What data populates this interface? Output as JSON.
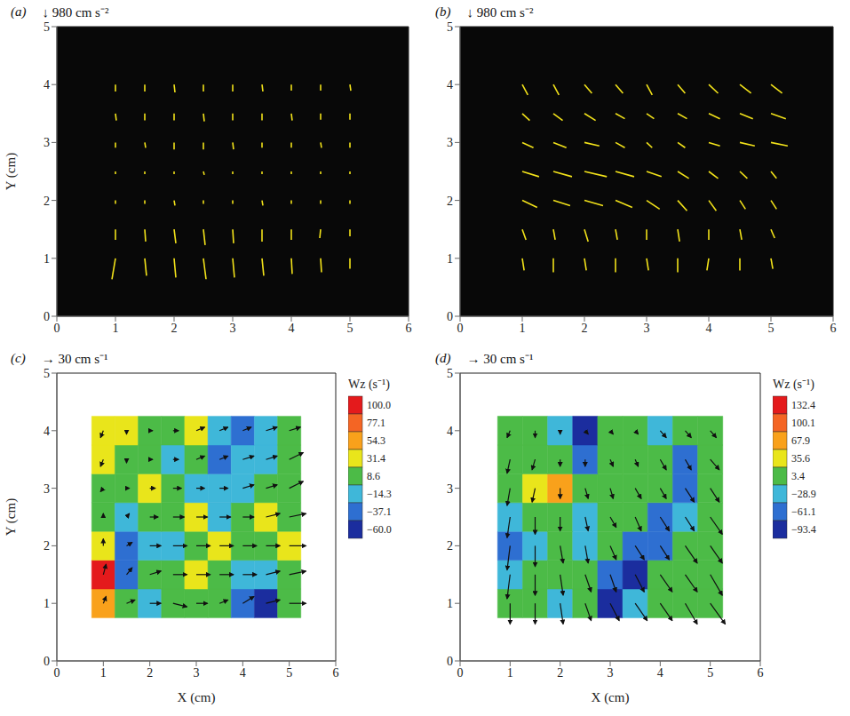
{
  "chart_data": [
    {
      "type": "vector",
      "title": "(a)",
      "annotation": "↓ 980 cm s⁻²",
      "ylabel": "Y (cm)",
      "color": "#f2e21a",
      "xlim": [
        0,
        6
      ],
      "ylim": [
        0,
        5
      ],
      "xticks": [
        0,
        1,
        2,
        3,
        4,
        5,
        6
      ],
      "yticks": [
        0,
        1,
        2,
        3,
        4,
        5
      ],
      "x": [
        1,
        1.5,
        2,
        2.5,
        3,
        3.5,
        4,
        4.5,
        5
      ],
      "y": [
        1,
        1.5,
        2,
        2.5,
        3,
        3.5,
        4
      ],
      "u": [
        [
          -200,
          100,
          100,
          150,
          100,
          100,
          50,
          50,
          0
        ],
        [
          0,
          50,
          100,
          100,
          50,
          0,
          0,
          -50,
          0
        ],
        [
          0,
          0,
          50,
          0,
          0,
          50,
          0,
          0,
          0
        ],
        [
          0,
          0,
          0,
          50,
          0,
          0,
          0,
          0,
          0
        ],
        [
          0,
          50,
          0,
          0,
          50,
          0,
          0,
          50,
          0
        ],
        [
          50,
          0,
          0,
          50,
          0,
          0,
          50,
          0,
          0
        ],
        [
          0,
          0,
          50,
          0,
          0,
          50,
          0,
          0,
          50
        ]
      ],
      "v": [
        [
          -1200,
          -1000,
          -1100,
          -1200,
          -1100,
          -1000,
          -900,
          -800,
          -600
        ],
        [
          -600,
          -700,
          -800,
          -900,
          -800,
          -700,
          -600,
          -500,
          -400
        ],
        [
          -200,
          -200,
          -300,
          -200,
          -200,
          -300,
          -200,
          -200,
          -200
        ],
        [
          -150,
          -150,
          -150,
          -200,
          -150,
          -150,
          -150,
          -150,
          -150
        ],
        [
          -300,
          -300,
          -400,
          -400,
          -400,
          -300,
          -300,
          -300,
          -300
        ],
        [
          -400,
          -400,
          -400,
          -450,
          -400,
          -400,
          -400,
          -350,
          -350
        ],
        [
          -400,
          -400,
          -450,
          -400,
          -400,
          -400,
          -350,
          -350,
          -350
        ]
      ]
    },
    {
      "type": "vector",
      "title": "(b)",
      "annotation": "↓ 980 cm s⁻²",
      "color": "#f2e21a",
      "xlim": [
        0,
        6
      ],
      "ylim": [
        0,
        5
      ],
      "xticks": [
        0,
        1,
        2,
        3,
        4,
        5,
        6
      ],
      "yticks": [
        0,
        1,
        2,
        3,
        4,
        5
      ],
      "x": [
        1,
        1.5,
        2,
        2.5,
        3,
        3.5,
        4,
        4.5,
        5
      ],
      "y": [
        1,
        1.5,
        2,
        2.5,
        3,
        3.5,
        4
      ],
      "u": [
        [
          100,
          0,
          100,
          0,
          100,
          0,
          -100,
          0,
          100
        ],
        [
          200,
          100,
          200,
          100,
          0,
          100,
          0,
          100,
          200
        ],
        [
          800,
          900,
          1000,
          900,
          700,
          500,
          400,
          300,
          300
        ],
        [
          900,
          1000,
          1200,
          1000,
          800,
          600,
          500,
          400,
          300
        ],
        [
          600,
          700,
          800,
          500,
          300,
          400,
          600,
          800,
          900
        ],
        [
          400,
          500,
          600,
          500,
          400,
          500,
          600,
          700,
          800
        ],
        [
          300,
          300,
          400,
          400,
          300,
          400,
          500,
          600,
          600
        ]
      ],
      "v": [
        [
          -700,
          -800,
          -700,
          -800,
          -700,
          -800,
          -700,
          -700,
          -600
        ],
        [
          -600,
          -600,
          -700,
          -600,
          -600,
          -700,
          -600,
          -600,
          -500
        ],
        [
          -400,
          -300,
          -300,
          -400,
          -500,
          -600,
          -600,
          -500,
          -500
        ],
        [
          -300,
          -300,
          -300,
          -300,
          -300,
          -400,
          -400,
          -400,
          -400
        ],
        [
          -300,
          -300,
          -200,
          -300,
          -300,
          -300,
          -200,
          -200,
          -200
        ],
        [
          -400,
          -400,
          -400,
          -300,
          -300,
          -300,
          -300,
          -300,
          -300
        ],
        [
          -600,
          -600,
          -500,
          -500,
          -600,
          -500,
          -500,
          -500,
          -500
        ]
      ]
    },
    {
      "type": "vector_heatmap",
      "title": "(c)",
      "annotation": "→ 30 cm s⁻¹",
      "xlabel": "X (cm)",
      "ylabel": "Y (cm)",
      "color": "#111111",
      "xlim": [
        0,
        6
      ],
      "ylim": [
        0,
        5
      ],
      "xticks": [
        0,
        1,
        2,
        3,
        4,
        5,
        6
      ],
      "yticks": [
        0,
        1,
        2,
        3,
        4,
        5
      ],
      "x": [
        1,
        1.5,
        2,
        2.5,
        3,
        3.5,
        4,
        4.5,
        5
      ],
      "y": [
        1,
        1.5,
        2,
        2.5,
        3,
        3.5,
        4
      ],
      "u": [
        [
          5,
          15,
          20,
          25,
          20,
          15,
          20,
          25,
          30
        ],
        [
          5,
          10,
          20,
          25,
          25,
          25,
          25,
          25,
          30
        ],
        [
          0,
          10,
          20,
          25,
          25,
          25,
          25,
          25,
          30
        ],
        [
          0,
          5,
          15,
          20,
          20,
          20,
          20,
          25,
          30
        ],
        [
          -5,
          5,
          10,
          15,
          15,
          15,
          20,
          20,
          25
        ],
        [
          -5,
          0,
          5,
          10,
          15,
          15,
          20,
          20,
          25
        ],
        [
          -5,
          0,
          5,
          10,
          15,
          15,
          15,
          20,
          20
        ]
      ],
      "v": [
        [
          10,
          5,
          0,
          -5,
          0,
          5,
          10,
          5,
          0
        ],
        [
          15,
          10,
          5,
          0,
          0,
          0,
          0,
          5,
          5
        ],
        [
          10,
          5,
          0,
          0,
          0,
          0,
          0,
          0,
          0
        ],
        [
          5,
          5,
          0,
          0,
          0,
          0,
          0,
          5,
          5
        ],
        [
          -5,
          0,
          0,
          0,
          0,
          0,
          5,
          5,
          10
        ],
        [
          -10,
          -5,
          0,
          0,
          5,
          5,
          5,
          5,
          10
        ],
        [
          -10,
          -5,
          0,
          0,
          5,
          5,
          5,
          5,
          5
        ]
      ],
      "vorticity": [
        [
          60,
          10,
          -20,
          10,
          10,
          15,
          -40,
          -50,
          10
        ],
        [
          90,
          -30,
          10,
          15,
          20,
          10,
          -10,
          -20,
          15
        ],
        [
          20,
          -40,
          -20,
          -10,
          15,
          20,
          10,
          15,
          20
        ],
        [
          15,
          -10,
          10,
          15,
          20,
          -15,
          10,
          20,
          15
        ],
        [
          10,
          15,
          20,
          10,
          -20,
          -20,
          -10,
          15,
          10
        ],
        [
          20,
          15,
          10,
          -10,
          15,
          -30,
          -25,
          -10,
          10
        ],
        [
          30,
          20,
          15,
          10,
          20,
          -20,
          -40,
          -20,
          15
        ]
      ],
      "colorbar": {
        "title": "Wz (s⁻¹)",
        "range": [
          -60,
          100
        ],
        "ticks": [
          {
            "value": 100,
            "label": "100.0"
          },
          {
            "value": 77.1,
            "label": "77.1"
          },
          {
            "value": 54.3,
            "label": "54.3"
          },
          {
            "value": 31.4,
            "label": "31.4"
          },
          {
            "value": 8.6,
            "label": "8.6"
          },
          {
            "value": -14.3,
            "label": "−14.3"
          },
          {
            "value": -37.1,
            "label": "−37.1"
          },
          {
            "value": -60,
            "label": "−60.0"
          }
        ],
        "colors": [
          "#e41a1c",
          "#f46524",
          "#f9a11b",
          "#e9e51b",
          "#4cbb47",
          "#3fb7d9",
          "#2e6fd1",
          "#1b2d9e"
        ]
      }
    },
    {
      "type": "vector_heatmap",
      "title": "(d)",
      "annotation": "→ 30 cm s⁻¹",
      "xlabel": "X (cm)",
      "color": "#111111",
      "xlim": [
        0,
        6
      ],
      "ylim": [
        0,
        5
      ],
      "xticks": [
        0,
        1,
        2,
        3,
        4,
        5,
        6
      ],
      "yticks": [
        0,
        1,
        2,
        3,
        4,
        5
      ],
      "x": [
        1,
        1.5,
        2,
        2.5,
        3,
        3.5,
        4,
        4.5,
        5
      ],
      "y": [
        1,
        1.5,
        2,
        2.5,
        3,
        3.5,
        4
      ],
      "u": [
        [
          0,
          0,
          5,
          10,
          15,
          20,
          20,
          20,
          25
        ],
        [
          -5,
          0,
          5,
          10,
          10,
          15,
          20,
          20,
          20
        ],
        [
          -5,
          0,
          5,
          5,
          10,
          15,
          15,
          20,
          20
        ],
        [
          -5,
          0,
          0,
          5,
          10,
          10,
          15,
          15,
          20
        ],
        [
          -5,
          -5,
          0,
          5,
          5,
          10,
          10,
          15,
          15
        ],
        [
          -5,
          -5,
          0,
          0,
          5,
          5,
          10,
          10,
          15
        ],
        [
          -5,
          0,
          0,
          5,
          5,
          5,
          10,
          10,
          10
        ]
      ],
      "v": [
        [
          -30,
          -30,
          -30,
          -25,
          -25,
          -25,
          -25,
          -30,
          -30
        ],
        [
          -35,
          -30,
          -30,
          -25,
          -25,
          -25,
          -25,
          -25,
          -30
        ],
        [
          -35,
          -30,
          -25,
          -25,
          -20,
          -20,
          -20,
          -25,
          -25
        ],
        [
          -30,
          -25,
          -20,
          -20,
          -15,
          -20,
          -20,
          -20,
          -25
        ],
        [
          -25,
          -20,
          -15,
          -15,
          -15,
          -15,
          -15,
          -20,
          -20
        ],
        [
          -20,
          -15,
          -10,
          -10,
          -10,
          -10,
          -15,
          -15,
          -15
        ],
        [
          -10,
          -10,
          -5,
          -5,
          -5,
          -5,
          -10,
          -10,
          -10
        ]
      ],
      "vorticity": [
        [
          10,
          5,
          -20,
          10,
          -90,
          -30,
          10,
          15,
          10
        ],
        [
          -30,
          -10,
          10,
          15,
          -60,
          -80,
          10,
          10,
          5
        ],
        [
          -60,
          -40,
          10,
          -20,
          10,
          -70,
          -60,
          10,
          10
        ],
        [
          -20,
          10,
          10,
          -30,
          -10,
          10,
          -70,
          -20,
          10
        ],
        [
          10,
          20,
          70,
          10,
          10,
          10,
          10,
          -60,
          10
        ],
        [
          10,
          10,
          -10,
          -70,
          10,
          10,
          10,
          -50,
          10
        ],
        [
          15,
          10,
          -40,
          -90,
          10,
          10,
          -20,
          10,
          10
        ]
      ],
      "colorbar": {
        "title": "Wz (s⁻¹)",
        "range": [
          -93.4,
          132.4
        ],
        "ticks": [
          {
            "value": 132.4,
            "label": "132.4"
          },
          {
            "value": 100.1,
            "label": "100.1"
          },
          {
            "value": 67.9,
            "label": "67.9"
          },
          {
            "value": 35.6,
            "label": "35.6"
          },
          {
            "value": 3.4,
            "label": "3.4"
          },
          {
            "value": -28.9,
            "label": "−28.9"
          },
          {
            "value": -61.1,
            "label": "−61.1"
          },
          {
            "value": -93.4,
            "label": "−93.4"
          }
        ],
        "colors": [
          "#e41a1c",
          "#f46524",
          "#f9a11b",
          "#e9e51b",
          "#4cbb47",
          "#3fb7d9",
          "#2e6fd1",
          "#1b2d9e"
        ]
      }
    }
  ]
}
